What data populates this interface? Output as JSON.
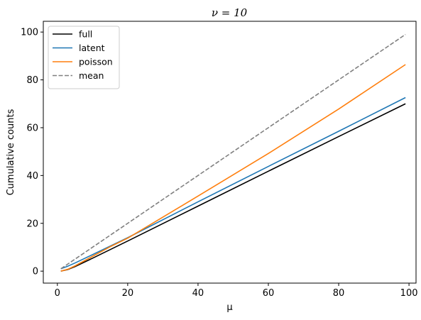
{
  "chart_data": {
    "type": "line",
    "title": "ν = 10",
    "xlabel": "μ",
    "ylabel": "Cumulative counts",
    "xlim": [
      -4,
      102
    ],
    "ylim": [
      -5,
      104.5
    ],
    "x_ticks": [
      0,
      20,
      40,
      60,
      80,
      100
    ],
    "y_ticks": [
      0,
      20,
      40,
      60,
      80,
      100
    ],
    "grid": false,
    "legend_position": "top-left",
    "series": [
      {
        "name": "full",
        "color": "#000000",
        "dash": "solid",
        "points": [
          [
            1,
            0
          ],
          [
            3,
            0.7
          ],
          [
            5,
            1.9
          ],
          [
            10,
            5.4
          ],
          [
            20,
            12.6
          ],
          [
            40,
            27.2
          ],
          [
            60,
            41.8
          ],
          [
            80,
            56.3
          ],
          [
            99,
            70
          ]
        ]
      },
      {
        "name": "latent",
        "color": "#1f77b4",
        "dash": "solid",
        "points": [
          [
            1,
            1
          ],
          [
            3,
            2.1
          ],
          [
            5,
            3.4
          ],
          [
            10,
            6.9
          ],
          [
            20,
            14
          ],
          [
            40,
            29
          ],
          [
            60,
            43.8
          ],
          [
            80,
            58.5
          ],
          [
            99,
            72.6
          ]
        ]
      },
      {
        "name": "poisson",
        "color": "#ff7f0e",
        "dash": "solid",
        "points": [
          [
            1,
            0
          ],
          [
            3,
            0.8
          ],
          [
            5,
            2.2
          ],
          [
            10,
            6.2
          ],
          [
            15,
            10.2
          ],
          [
            20,
            13.8
          ],
          [
            40,
            31.4
          ],
          [
            60,
            49.2
          ],
          [
            80,
            67.8
          ],
          [
            99,
            86.4
          ]
        ]
      },
      {
        "name": "mean",
        "color": "#808080",
        "dash": "dashed",
        "points": [
          [
            1,
            1
          ],
          [
            99,
            99
          ]
        ]
      }
    ]
  }
}
